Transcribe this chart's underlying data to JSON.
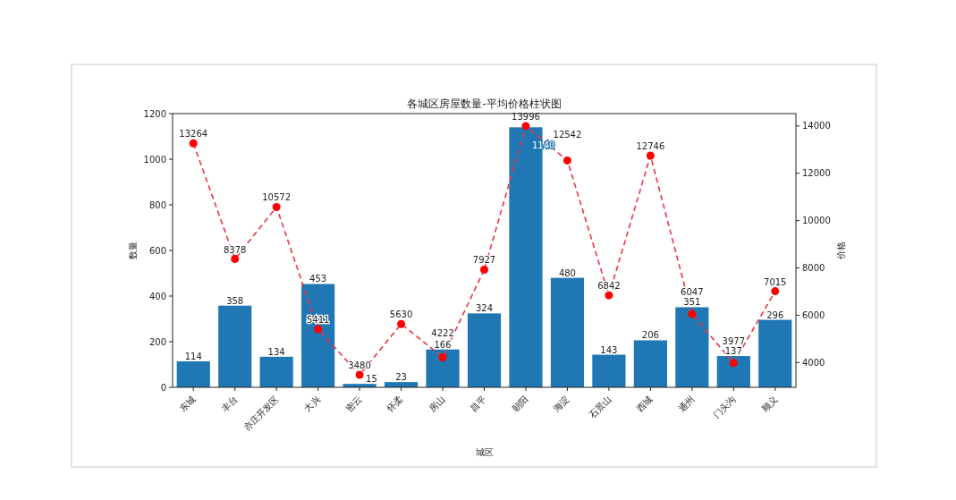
{
  "chart_data": {
    "type": "bar",
    "title": "各城区房屋数量-平均价格柱状图",
    "xlabel": "城区",
    "ylabel": "数量",
    "y2label": "价格",
    "categories": [
      "东城",
      "丰台",
      "亦庄开发区",
      "大兴",
      "密云",
      "怀柔",
      "房山",
      "昌平",
      "朝阳",
      "海淀",
      "石景山",
      "西城",
      "通州",
      "门头沟",
      "顺义"
    ],
    "series": [
      {
        "color": "#1f77b4",
        "values": [
          114,
          358,
          134,
          453,
          15,
          23,
          166,
          324,
          1140,
          480,
          143,
          206,
          351,
          137,
          296
        ]
      },
      {
        "type": "line",
        "axis": "y2",
        "color": "#ee3344",
        "values": [
          13264,
          8378,
          10572,
          5411,
          3480,
          5630,
          4222,
          7927,
          13996,
          12542,
          6842,
          12746,
          6047,
          3977,
          7015
        ]
      }
    ],
    "ylim": [
      0,
      1200
    ],
    "yticks": [
      0,
      200,
      400,
      600,
      800,
      1000,
      1200
    ],
    "y2lim": [
      2954,
      14522
    ],
    "y2ticks": [
      4000,
      6000,
      8000,
      10000,
      12000,
      14000
    ],
    "data_labels": true,
    "marker": "circle",
    "line_style": "dashed",
    "legend": false
  }
}
